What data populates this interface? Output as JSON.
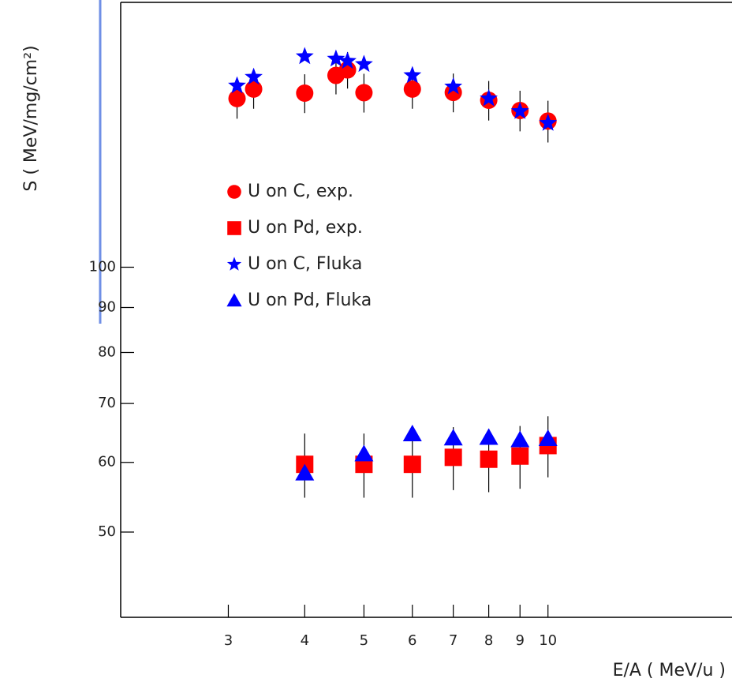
{
  "chart_data": {
    "type": "scatter",
    "x_label": "E/A ( MeV/u )",
    "y_label": "S ( MeV/mg/cm²)",
    "xscale": "log",
    "yscale": "log",
    "xlim": [
      2,
      20
    ],
    "ylim": [
      40,
      200
    ],
    "xticks": [
      3,
      4,
      5,
      6,
      7,
      8,
      9,
      10
    ],
    "yticks": [
      50,
      60,
      70,
      80,
      90,
      100
    ],
    "legend": "upper left",
    "series": [
      {
        "name": "U on C, exp.",
        "color": "#ff0000",
        "marker": "circle",
        "x": [
          3.1,
          3.3,
          4,
          4.5,
          4.7,
          5,
          6,
          7,
          8,
          9,
          10
        ],
        "values": [
          155.5,
          159.4,
          157.7,
          165.2,
          167.6,
          157.9,
          159.4,
          158,
          154.8,
          150.7,
          146.6
        ],
        "errors": [
          8,
          8,
          8,
          8,
          8,
          8,
          8,
          8,
          8,
          8,
          8
        ]
      },
      {
        "name": "U on Pd, exp.",
        "color": "#ff0000",
        "marker": "square",
        "x": [
          4,
          5,
          6,
          7,
          8,
          9,
          10
        ],
        "values": [
          59.7,
          59.7,
          59.7,
          60.8,
          60.5,
          61.0,
          62.7
        ],
        "errors": [
          5,
          5,
          5,
          5,
          5,
          5,
          5
        ]
      },
      {
        "name": "U on C, Fluka",
        "color": "#0000ff",
        "marker": "star",
        "x": [
          3.1,
          3.3,
          4,
          4.5,
          4.7,
          5,
          6,
          7,
          8,
          9,
          10
        ],
        "values": [
          160.8,
          164.5,
          173.6,
          172.5,
          171.5,
          170.1,
          165.2,
          160.4,
          155.5,
          150.4,
          145.8
        ]
      },
      {
        "name": "U on Pd, Fluka",
        "color": "#0000ff",
        "marker": "triangle",
        "x": [
          4,
          5,
          6,
          7,
          8,
          9,
          10
        ],
        "values": [
          58.3,
          61.3,
          64.6,
          63.9,
          64.0,
          63.6,
          63.8
        ]
      }
    ]
  }
}
